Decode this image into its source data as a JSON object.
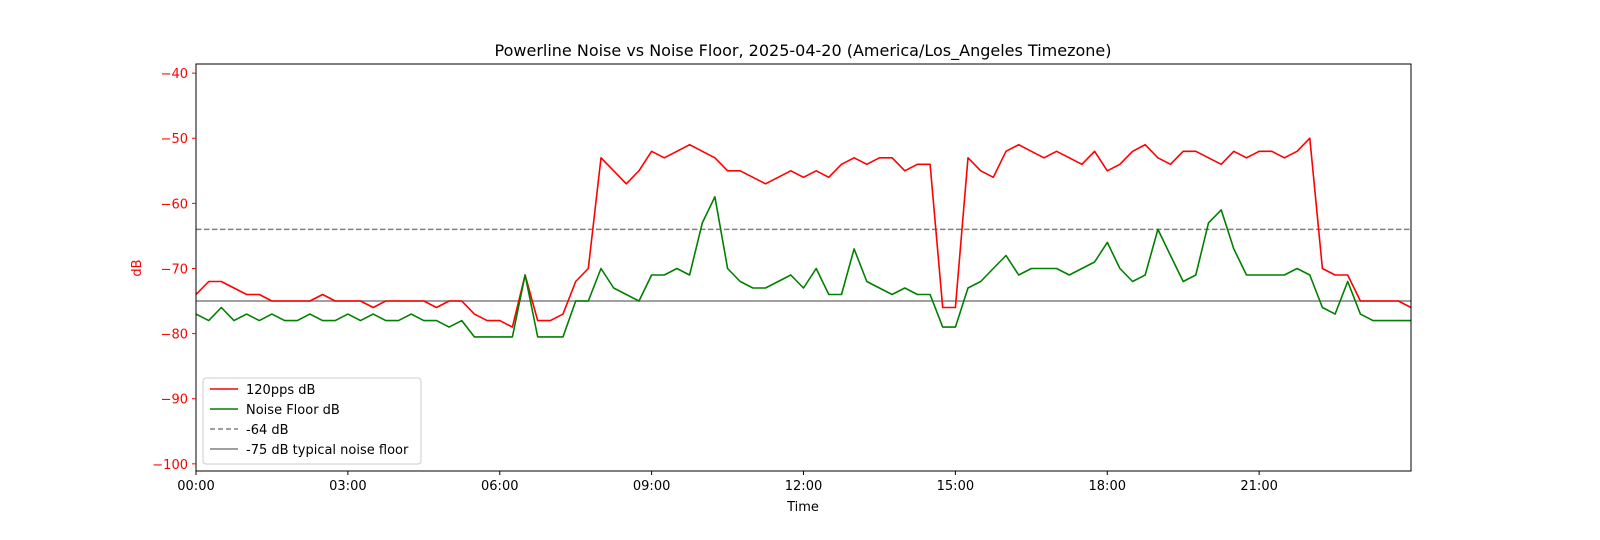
{
  "chart_data": {
    "type": "line",
    "title": "Powerline Noise vs Noise Floor, 2025-04-20 (America/Los_Angeles Timezone)",
    "xlabel": "Time",
    "ylabel": "dB",
    "xlim_hours": [
      0,
      24
    ],
    "ylim": [
      -101.1,
      -38.6
    ],
    "x_ticks": [
      {
        "h": 0,
        "label": "00:00"
      },
      {
        "h": 3,
        "label": "03:00"
      },
      {
        "h": 6,
        "label": "06:00"
      },
      {
        "h": 9,
        "label": "09:00"
      },
      {
        "h": 12,
        "label": "12:00"
      },
      {
        "h": 15,
        "label": "15:00"
      },
      {
        "h": 18,
        "label": "18:00"
      },
      {
        "h": 21,
        "label": "21:00"
      }
    ],
    "y_ticks": [
      {
        "v": -40,
        "label": "−40"
      },
      {
        "v": -50,
        "label": "−50"
      },
      {
        "v": -60,
        "label": "−60"
      },
      {
        "v": -70,
        "label": "−70"
      },
      {
        "v": -80,
        "label": "−80"
      },
      {
        "v": -90,
        "label": "−90"
      },
      {
        "v": -100,
        "label": "−100"
      }
    ],
    "x_step_hours": 0.25,
    "series": [
      {
        "name": "120pps dB",
        "color": "#ff0000",
        "values": [
          -74,
          -72,
          -72,
          -73,
          -74,
          -74,
          -75,
          -75,
          -75,
          -75,
          -74,
          -75,
          -75,
          -75,
          -76,
          -75,
          -75,
          -75,
          -75,
          -76,
          -75,
          -75,
          -77,
          -78,
          -78,
          -79,
          -71,
          -78,
          -78,
          -77,
          -72,
          -70,
          -53,
          -55,
          -57,
          -55,
          -52,
          -53,
          -52,
          -51,
          -52,
          -53,
          -55,
          -55,
          -56,
          -57,
          -56,
          -55,
          -56,
          -55,
          -56,
          -54,
          -53,
          -54,
          -53,
          -53,
          -55,
          -54,
          -54,
          -76,
          -76,
          -53,
          -55,
          -56,
          -52,
          -51,
          -52,
          -53,
          -52,
          -53,
          -54,
          -52,
          -55,
          -54,
          -52,
          -51,
          -53,
          -54,
          -52,
          -52,
          -53,
          -54,
          -52,
          -53,
          -52,
          -52,
          -53,
          -52,
          -50,
          -70,
          -71,
          -71,
          -75,
          -75,
          -75,
          -75,
          -76
        ]
      },
      {
        "name": "Noise Floor dB",
        "color": "#008000",
        "values": [
          -77,
          -78,
          -76,
          -78,
          -77,
          -78,
          -77,
          -78,
          -78,
          -77,
          -78,
          -78,
          -77,
          -78,
          -77,
          -78,
          -78,
          -77,
          -78,
          -78,
          -79,
          -78,
          -80.5,
          -80.5,
          -80.5,
          -80.5,
          -71,
          -80.5,
          -80.5,
          -80.5,
          -75,
          -75,
          -70,
          -73,
          -74,
          -75,
          -71,
          -71,
          -70,
          -71,
          -63,
          -59,
          -70,
          -72,
          -73,
          -73,
          -72,
          -71,
          -73,
          -70,
          -74,
          -74,
          -67,
          -72,
          -73,
          -74,
          -73,
          -74,
          -74,
          -79,
          -79,
          -73,
          -72,
          -70,
          -68,
          -71,
          -70,
          -70,
          -70,
          -71,
          -70,
          -69,
          -66,
          -70,
          -72,
          -71,
          -64,
          -68,
          -72,
          -71,
          -63,
          -61,
          -67,
          -71,
          -71,
          -71,
          -71,
          -70,
          -71,
          -76,
          -77,
          -72,
          -77,
          -78,
          -78,
          -78,
          -78
        ]
      }
    ],
    "reference_lines": [
      {
        "name": "-64 dB",
        "value": -64,
        "color": "#808080",
        "style": "dashed"
      },
      {
        "name": "-75 dB typical noise floor",
        "value": -75,
        "color": "#808080",
        "style": "solid"
      }
    ],
    "legend": {
      "placement": "lower-left",
      "entries": [
        "120pps dB",
        "Noise Floor dB",
        "-64 dB",
        "-75 dB typical noise floor"
      ]
    },
    "grid": false,
    "ytick_color": "#ff0000"
  }
}
